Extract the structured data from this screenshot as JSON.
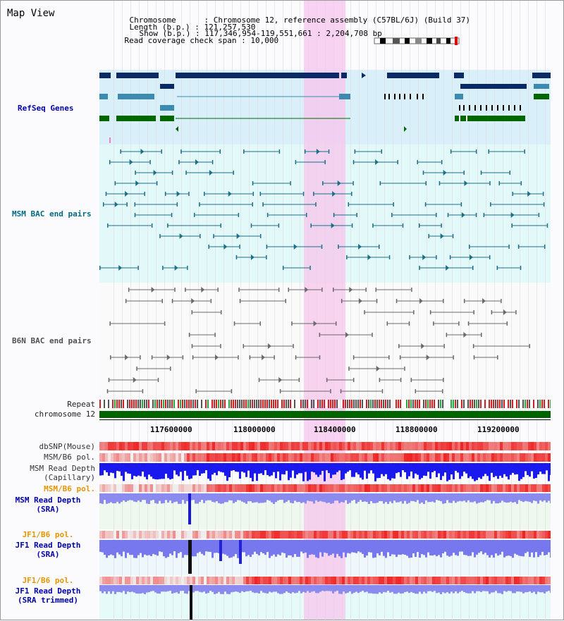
{
  "page_title": "Map View",
  "info": {
    "chromosome_label": "Chromosome",
    "chromosome_value": "Chromosome 12, reference assembly (C57BL/6J) (Build 37)",
    "length_label": "Length (b.p.)",
    "length_value": "121,257,530",
    "show_label": "Show (b.p.)",
    "show_value": "117,346,954-119,551,661 : 2,204,708 bp",
    "span_label": "Read coverage check span",
    "span_value": "10,000"
  },
  "tracks": {
    "refseq": "RefSeq Genes",
    "msm_bac": "MSM BAC end pairs",
    "b6n_bac": "B6N BAC end pairs",
    "repeat": "Repeat",
    "chromosome": "chromosome 12",
    "dbsnp": "dbSNP(Mouse)",
    "msm_b6_pol_1": "MSM/B6 pol.",
    "msm_depth_cap_1": "MSM Read Depth",
    "msm_depth_cap_2": "(Capillary)",
    "msm_b6_pol_2": "MSM/B6 pol.",
    "msm_depth_sra_1": "MSM Read Depth",
    "msm_depth_sra_2": "(SRA)",
    "jf1_b6_pol_1": "JF1/B6 pol.",
    "jf1_depth_sra_1": "JF1 Read Depth",
    "jf1_depth_sra_2": "(SRA)",
    "jf1_b6_pol_2": "JF1/B6 pol.",
    "jf1_depth_trim_1": "JF1 Read Depth",
    "jf1_depth_trim_2": "(SRA trimmed)"
  },
  "axis_ticks": [
    "117600000",
    "118000000",
    "118400000",
    "118800000",
    "119200000"
  ],
  "colors": {
    "refseq_label": "#0000aa",
    "msm_label": "#006a80",
    "b6n_label": "#505050",
    "pol_label_orange": "#e69500",
    "sra_label": "#0000aa",
    "highlight": "#f6c6ec",
    "gene_dark": "#0a2a66",
    "gene_mid": "#3b8ab0",
    "gene_green": "#006600",
    "chromosome_bar": "#006400"
  }
}
